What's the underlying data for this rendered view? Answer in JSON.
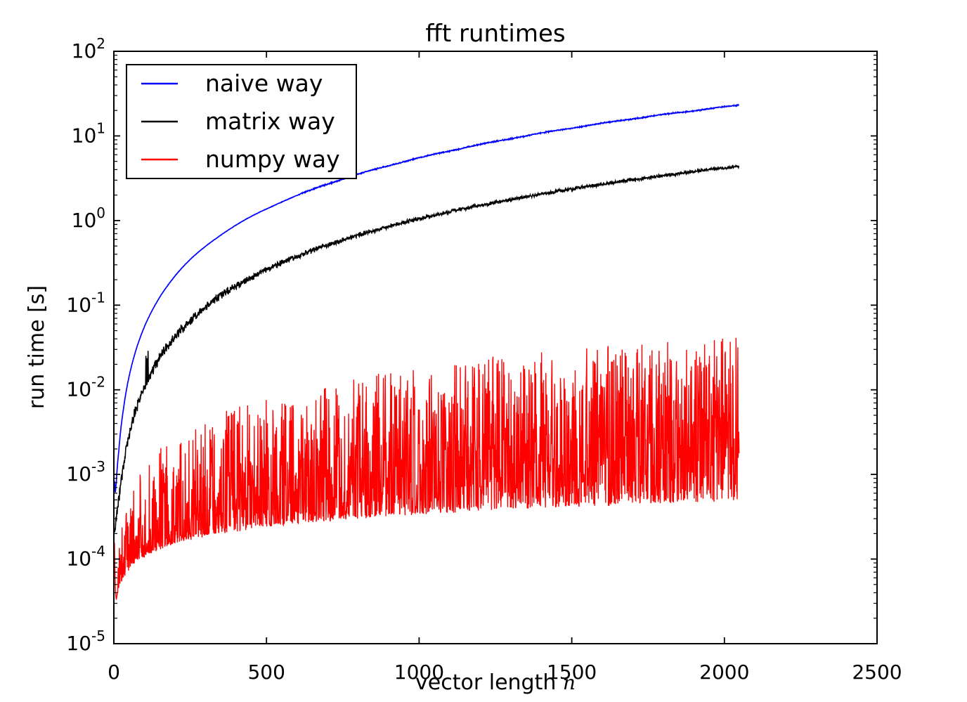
{
  "figure": {
    "title": "fft runtimes",
    "background": "#ffffff",
    "axis_color": "#000000"
  },
  "axes": {
    "xlabel": {
      "text": "vector length ",
      "math": "n"
    },
    "ylabel": "run time [s]",
    "x": {
      "min": 0,
      "max": 2500,
      "ticks": [
        0,
        500,
        1000,
        1500,
        2000,
        2500
      ]
    },
    "y": {
      "scale": "log",
      "min_exp": -5,
      "max_exp": 2,
      "tick_exponents": [
        2,
        1,
        0,
        -1,
        -2,
        -3,
        -4,
        -5
      ],
      "minor_mantissas": [
        2,
        3,
        4,
        5,
        6,
        7,
        8,
        9
      ]
    }
  },
  "legend": {
    "position": "upper-left",
    "entries": [
      {
        "label": "naive way",
        "color": "#0000ff"
      },
      {
        "label": "matrix way",
        "color": "#000000"
      },
      {
        "label": "numpy way",
        "color": "#ff0000"
      }
    ]
  },
  "chart_data": {
    "type": "line",
    "title": "fft runtimes",
    "xlabel": "vector length n",
    "ylabel": "run time [s]",
    "x_range": [
      0,
      2500
    ],
    "y_range": [
      1e-05,
      100
    ],
    "y_scale": "log",
    "grid": false,
    "legend_position": "upper-left",
    "n_start": 2,
    "n_end": 2048,
    "series": [
      {
        "name": "naive way",
        "color": "#0000ff",
        "style": "smooth",
        "anchors": {
          "n": [
            2,
            4,
            8,
            16,
            32,
            64,
            96,
            128,
            192,
            256,
            384,
            512,
            768,
            1024,
            1280,
            1536,
            1792,
            2048
          ],
          "t": [
            0.00047,
            0.00054,
            0.0008,
            0.00186,
            0.00608,
            0.023,
            0.0511,
            0.0906,
            0.203,
            0.361,
            0.812,
            1.44,
            3.25,
            5.77,
            9.01,
            13.0,
            17.7,
            23.1
          ]
        },
        "noise_decades": 0.006,
        "start_spike_decades": 0.25
      },
      {
        "name": "matrix way",
        "color": "#000000",
        "style": "noisy",
        "anchors": {
          "n": [
            2,
            4,
            8,
            16,
            32,
            64,
            96,
            128,
            192,
            256,
            384,
            512,
            768,
            1024,
            1280,
            1536,
            1792,
            2048
          ],
          "t": [
            0.00022,
            0.00024,
            0.00029,
            0.00049,
            0.0013,
            0.00452,
            0.0099,
            0.0174,
            0.0389,
            0.069,
            0.155,
            0.275,
            0.62,
            1.1,
            1.72,
            2.48,
            3.37,
            4.4
          ]
        },
        "noise_decades_base": 0.013,
        "noise_decades_low_n": 0.045,
        "spike_n": 108,
        "spike_factor": 2.3
      },
      {
        "name": "numpy way",
        "color": "#ff0000",
        "style": "band",
        "envelope": {
          "n": [
            2,
            4,
            8,
            16,
            32,
            64,
            96,
            128,
            192,
            256,
            384,
            512,
            768,
            1024,
            1280,
            1536,
            1792,
            2048
          ],
          "lower": [
            3e-05,
            3e-05,
            3.1e-05,
            4.4e-05,
            6.2e-05,
            8.8e-05,
            0.000108,
            0.000124,
            0.000152,
            0.000176,
            0.000216,
            0.000249,
            0.000305,
            0.000352,
            0.000394,
            0.000431,
            0.000466,
            0.000498
          ],
          "upper": [
            4.8e-05,
            4.8e-05,
            6.1e-05,
            0.000138,
            0.000313,
            0.000709,
            0.00114,
            0.00161,
            0.00259,
            0.00364,
            0.00587,
            0.00825,
            0.0133,
            0.0187,
            0.0245,
            0.0305,
            0.0368,
            0.0423
          ]
        },
        "skew_start": 2.8,
        "skew_end": 1.5,
        "start_spike_decades": 0.65
      }
    ],
    "noise_seed": 42
  }
}
